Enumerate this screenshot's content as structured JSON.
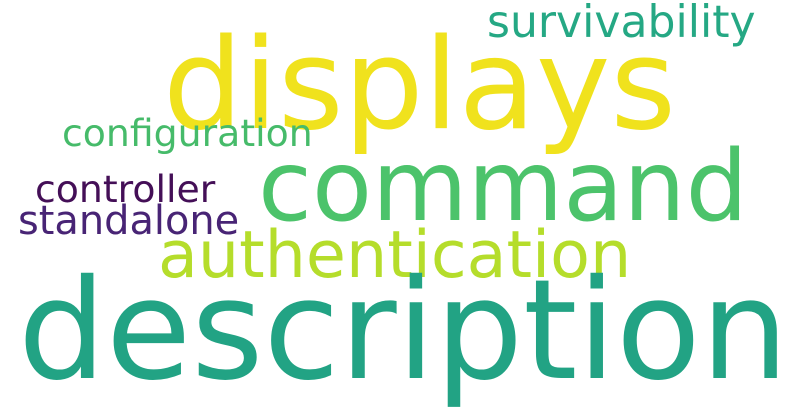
{
  "word_cloud": {
    "words": [
      {
        "text": "displays",
        "color": "#f0e21d"
      },
      {
        "text": "survivability",
        "color": "#25a884"
      },
      {
        "text": "configuration",
        "color": "#46bb6a"
      },
      {
        "text": "command",
        "color": "#4cc36b"
      },
      {
        "text": "controller",
        "color": "#440f57"
      },
      {
        "text": "standalone",
        "color": "#482475"
      },
      {
        "text": "authentication",
        "color": "#b5dd2b"
      },
      {
        "text": "description",
        "color": "#22a384"
      }
    ]
  }
}
